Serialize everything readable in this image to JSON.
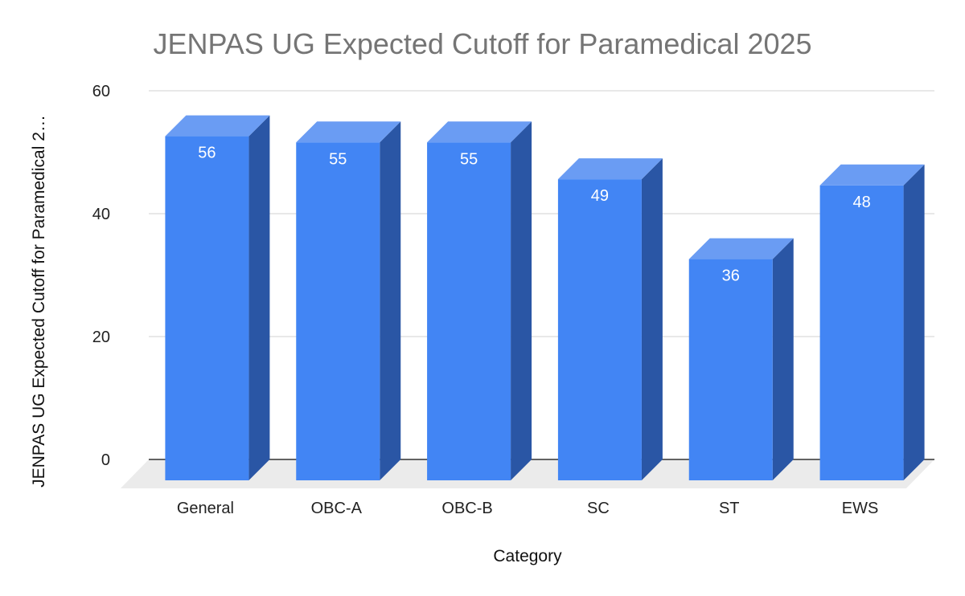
{
  "chart_data": {
    "type": "bar",
    "style": "3d",
    "title": "JENPAS UG Expected Cutoff for Paramedical 2025",
    "xlabel": "Category",
    "ylabel": "JENPAS UG Expected Cutoff for Paramedical 2…",
    "categories": [
      "General",
      "OBC-A",
      "OBC-B",
      "SC",
      "ST",
      "EWS"
    ],
    "series": [
      {
        "values": [
          56,
          55,
          55,
          49,
          36,
          48
        ],
        "data_labels": [
          "56",
          "55",
          "55",
          "49",
          "36",
          "48"
        ]
      }
    ],
    "yticks": [
      {
        "value": 0,
        "label": "0"
      },
      {
        "value": 20,
        "label": "20"
      },
      {
        "value": 40,
        "label": "40"
      },
      {
        "value": 60,
        "label": "60"
      }
    ],
    "ylim": [
      0,
      60
    ],
    "grid": true,
    "legend": "none",
    "colors": {
      "front": "#4285f4",
      "side": "#2a56a5",
      "top": "#6a9cf3",
      "floor": "#ebebeb",
      "grid": "#d0d0d0",
      "baseline": "#333333"
    }
  }
}
